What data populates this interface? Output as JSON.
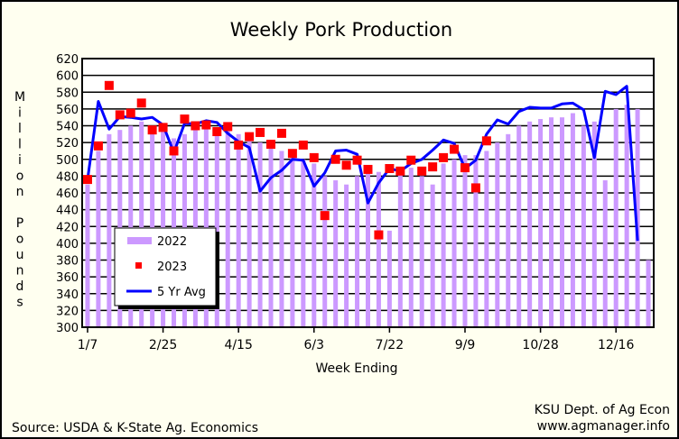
{
  "chart_data": {
    "type": "bar",
    "title": "Weekly Pork Production",
    "xlabel": "Week Ending",
    "ylabel": "Million Pounds",
    "ylim": [
      300,
      620
    ],
    "ytick_step": 20,
    "x_tick_labels": [
      "1/7",
      "2/25",
      "4/15",
      "6/3",
      "7/22",
      "9/9",
      "10/28",
      "12/16"
    ],
    "x_tick_weeks": [
      1,
      8,
      15,
      22,
      29,
      36,
      43,
      50
    ],
    "num_weeks": 53,
    "legend_position": "lower-left",
    "series": [
      {
        "name": "2022",
        "type": "bar",
        "color": "#cc99ff",
        "values": [
          470,
          510,
          530,
          535,
          540,
          545,
          540,
          535,
          525,
          530,
          535,
          540,
          530,
          535,
          530,
          525,
          520,
          515,
          510,
          505,
          500,
          495,
          480,
          475,
          470,
          480,
          490,
          485,
          415,
          485,
          490,
          480,
          470,
          495,
          500,
          505,
          505,
          510,
          520,
          530,
          540,
          545,
          548,
          550,
          550,
          555,
          540,
          545,
          475,
          560,
          565,
          560,
          380
        ]
      },
      {
        "name": "2023",
        "type": "scatter",
        "color": "#ff0000",
        "values": [
          476,
          516,
          588,
          553,
          555,
          567,
          535,
          538,
          510,
          548,
          540,
          541,
          533,
          539,
          517,
          527,
          532,
          518,
          531,
          507,
          517,
          502,
          433,
          500,
          493,
          499,
          488,
          410,
          489,
          486,
          499,
          486,
          491,
          502,
          512,
          490,
          466,
          522
        ]
      },
      {
        "name": "5 Yr Avg",
        "type": "line",
        "color": "#0000ff",
        "values": [
          476,
          569,
          536,
          551,
          550,
          548,
          550,
          541,
          508,
          543,
          542,
          546,
          544,
          531,
          521,
          514,
          462,
          478,
          487,
          500,
          499,
          468,
          484,
          510,
          511,
          506,
          448,
          472,
          489,
          486,
          495,
          500,
          511,
          523,
          519,
          489,
          499,
          530,
          547,
          542,
          557,
          562,
          561,
          561,
          566,
          567,
          559,
          502,
          581,
          577,
          587,
          403
        ]
      }
    ]
  },
  "source_text": "Source:  USDA & K-State Ag. Economics",
  "credit_line1": "KSU Dept. of Ag Econ",
  "credit_line2": "www.agmanager.info"
}
